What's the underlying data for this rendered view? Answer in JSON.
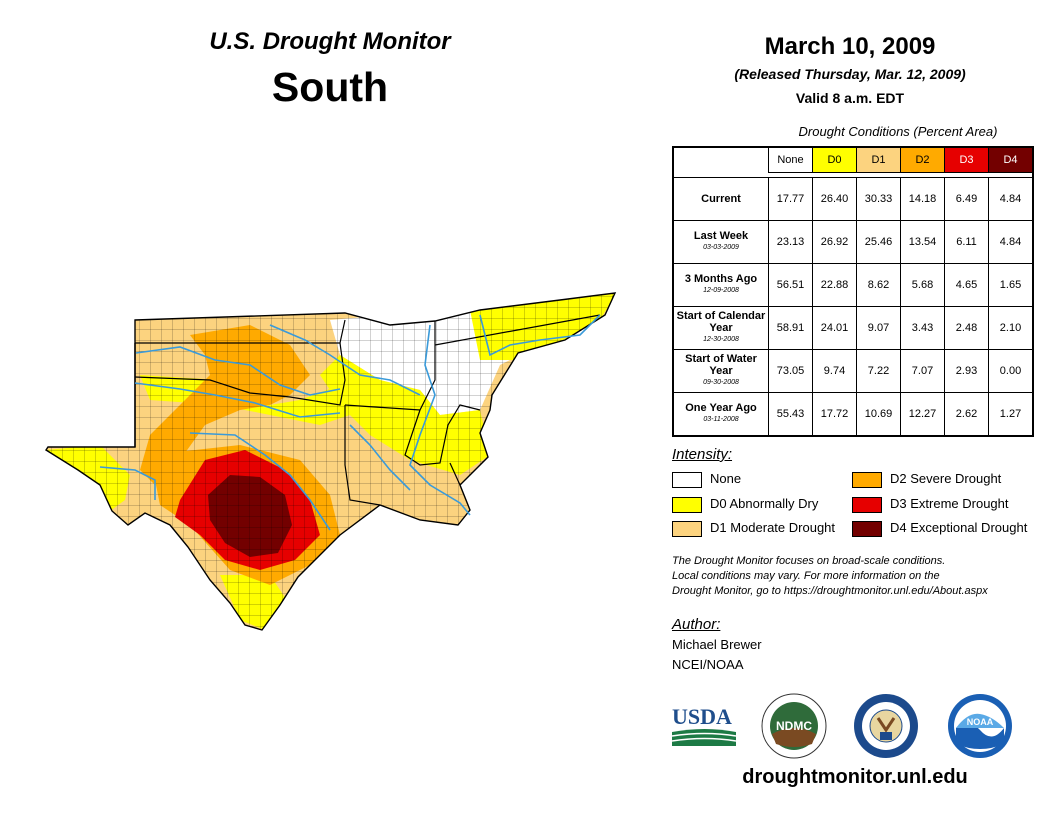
{
  "header": {
    "title": "U.S. Drought Monitor",
    "region": "South",
    "date": "March 10, 2009",
    "released": "(Released Thursday, Mar. 12, 2009)",
    "valid": "Valid 8 a.m. EDT"
  },
  "table": {
    "caption": "Drought Conditions (Percent Area)",
    "columns": [
      "None",
      "D0",
      "D1",
      "D2",
      "D3",
      "D4"
    ],
    "column_colors": [
      "#ffffff",
      "#ffff00",
      "#fcd37f",
      "#ffaa00",
      "#e60000",
      "#730000"
    ],
    "rows": [
      {
        "label": "Current",
        "date": "",
        "values": [
          "17.77",
          "26.40",
          "30.33",
          "14.18",
          "6.49",
          "4.84"
        ]
      },
      {
        "label": "Last Week",
        "date": "03-03-2009",
        "values": [
          "23.13",
          "26.92",
          "25.46",
          "13.54",
          "6.11",
          "4.84"
        ]
      },
      {
        "label": "3 Months Ago",
        "date": "12-09-2008",
        "values": [
          "56.51",
          "22.88",
          "8.62",
          "5.68",
          "4.65",
          "1.65"
        ]
      },
      {
        "label": "Start of Calendar Year",
        "date": "12-30-2008",
        "values": [
          "58.91",
          "24.01",
          "9.07",
          "3.43",
          "2.48",
          "2.10"
        ]
      },
      {
        "label": "Start of Water Year",
        "date": "09-30-2008",
        "values": [
          "73.05",
          "9.74",
          "7.22",
          "7.07",
          "2.93",
          "0.00"
        ]
      },
      {
        "label": "One Year Ago",
        "date": "03-11-2008",
        "values": [
          "55.43",
          "17.72",
          "10.69",
          "12.27",
          "2.62",
          "1.27"
        ]
      }
    ]
  },
  "legend": {
    "title": "Intensity:",
    "items": [
      {
        "label": "None",
        "color": "#ffffff"
      },
      {
        "label": "D0 Abnormally Dry",
        "color": "#ffff00"
      },
      {
        "label": "D1 Moderate Drought",
        "color": "#fcd37f"
      },
      {
        "label": "D2 Severe Drought",
        "color": "#ffaa00"
      },
      {
        "label": "D3 Extreme Drought",
        "color": "#e60000"
      },
      {
        "label": "D4 Exceptional Drought",
        "color": "#730000"
      }
    ]
  },
  "note": {
    "line1": "The Drought Monitor focuses on broad-scale conditions.",
    "line2": "Local conditions may vary. For more information on the",
    "line3": "Drought Monitor, go to https://droughtmonitor.unl.edu/About.aspx"
  },
  "author": {
    "title": "Author:",
    "name": "Michael Brewer",
    "org": "NCEI/NOAA"
  },
  "logos": {
    "usda": "USDA",
    "ndmc": "NDMC",
    "noaa": "NOAA"
  },
  "footer_url": "droughtmonitor.unl.edu"
}
